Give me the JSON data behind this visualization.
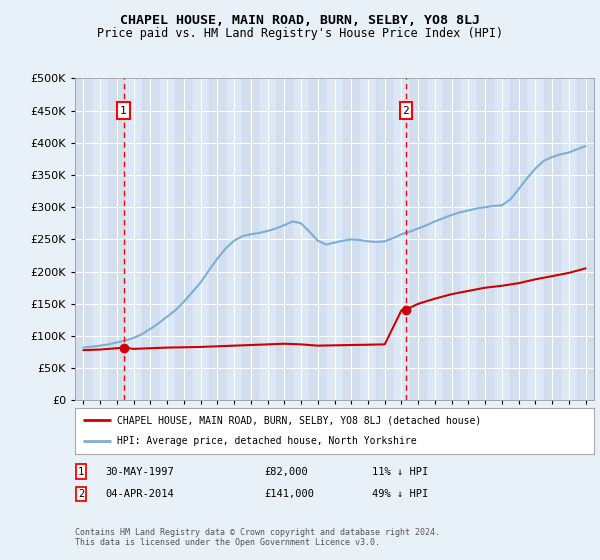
{
  "title": "CHAPEL HOUSE, MAIN ROAD, BURN, SELBY, YO8 8LJ",
  "subtitle": "Price paid vs. HM Land Registry's House Price Index (HPI)",
  "legend_line1": "CHAPEL HOUSE, MAIN ROAD, BURN, SELBY, YO8 8LJ (detached house)",
  "legend_line2": "HPI: Average price, detached house, North Yorkshire",
  "sale1_label": "1",
  "sale1_date": "30-MAY-1997",
  "sale1_price": "£82,000",
  "sale1_hpi": "11% ↓ HPI",
  "sale1_year": 1997.4,
  "sale1_value": 82000,
  "sale2_label": "2",
  "sale2_date": "04-APR-2014",
  "sale2_price": "£141,000",
  "sale2_hpi": "49% ↓ HPI",
  "sale2_year": 2014.27,
  "sale2_value": 141000,
  "footnote": "Contains HM Land Registry data © Crown copyright and database right 2024.\nThis data is licensed under the Open Government Licence v3.0.",
  "ylim": [
    0,
    500000
  ],
  "yticks": [
    0,
    50000,
    100000,
    150000,
    200000,
    250000,
    300000,
    350000,
    400000,
    450000,
    500000
  ],
  "xlim_start": 1994.5,
  "xlim_end": 2025.5,
  "bg_color": "#e8f0f8",
  "plot_bg": "#dce8f5",
  "grid_color": "#ffffff",
  "red_line_color": "#cc0000",
  "blue_line_color": "#7bafd4",
  "hpi_years": [
    1995.0,
    1995.5,
    1996.0,
    1996.5,
    1997.0,
    1997.5,
    1998.0,
    1998.5,
    1999.0,
    1999.5,
    2000.0,
    2000.5,
    2001.0,
    2001.5,
    2002.0,
    2002.5,
    2003.0,
    2003.5,
    2004.0,
    2004.5,
    2005.0,
    2005.5,
    2006.0,
    2006.5,
    2007.0,
    2007.5,
    2008.0,
    2008.5,
    2009.0,
    2009.5,
    2010.0,
    2010.5,
    2011.0,
    2011.5,
    2012.0,
    2012.5,
    2013.0,
    2013.5,
    2014.0,
    2014.5,
    2015.0,
    2015.5,
    2016.0,
    2016.5,
    2017.0,
    2017.5,
    2018.0,
    2018.5,
    2019.0,
    2019.5,
    2020.0,
    2020.5,
    2021.0,
    2021.5,
    2022.0,
    2022.5,
    2023.0,
    2023.5,
    2024.0,
    2024.5,
    2025.0
  ],
  "hpi_values": [
    82000,
    83500,
    85000,
    87000,
    90000,
    93000,
    97000,
    103000,
    111000,
    120000,
    130000,
    140000,
    153000,
    168000,
    183000,
    202000,
    220000,
    236000,
    248000,
    255000,
    258000,
    260000,
    263000,
    267000,
    272000,
    278000,
    275000,
    262000,
    248000,
    242000,
    245000,
    248000,
    250000,
    249000,
    247000,
    246000,
    247000,
    252000,
    258000,
    262000,
    267000,
    272000,
    278000,
    283000,
    288000,
    292000,
    295000,
    298000,
    300000,
    302000,
    303000,
    312000,
    328000,
    345000,
    360000,
    372000,
    378000,
    382000,
    385000,
    390000,
    395000
  ],
  "price_paid_years": [
    1995.0,
    1996.0,
    1997.0,
    1997.4,
    1998.0,
    1999.0,
    2000.0,
    2001.0,
    2002.0,
    2003.0,
    2004.0,
    2005.0,
    2006.0,
    2007.0,
    2008.0,
    2009.0,
    2010.0,
    2011.0,
    2012.0,
    2013.0,
    2014.0,
    2014.27,
    2015.0,
    2016.0,
    2017.0,
    2018.0,
    2019.0,
    2020.0,
    2021.0,
    2022.0,
    2023.0,
    2024.0,
    2025.0
  ],
  "price_paid_values": [
    78000,
    79000,
    81000,
    82000,
    80000,
    81000,
    82000,
    82500,
    83000,
    84000,
    85000,
    86000,
    87000,
    88000,
    87000,
    85000,
    85500,
    86000,
    86500,
    87000,
    140000,
    141000,
    150000,
    158000,
    165000,
    170000,
    175000,
    178000,
    182000,
    188000,
    193000,
    198000,
    205000
  ]
}
